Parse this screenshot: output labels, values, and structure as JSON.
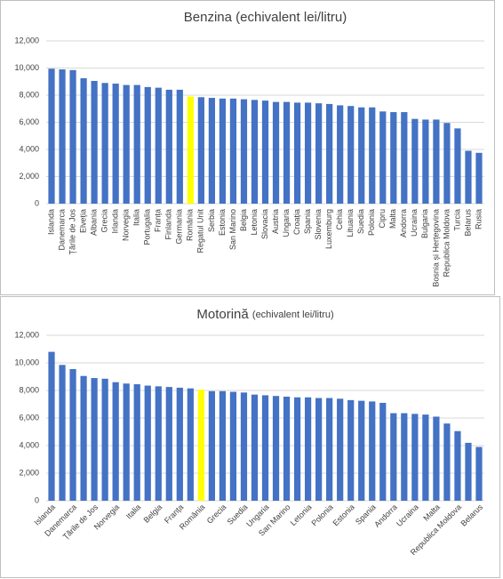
{
  "chart_data": [
    {
      "type": "bar",
      "title": "Benzina (echivalent lei/litru)",
      "categories": [
        "Islanda",
        "Danemarca",
        "Țările de Jos",
        "Elveția",
        "Albania",
        "Grecia",
        "Irlanda",
        "Norvegia",
        "Italia",
        "Portugalia",
        "Franța",
        "Finlanda",
        "Germania",
        "România",
        "Regatul Unit",
        "Serbia",
        "Estonia",
        "San Marino",
        "Belgia",
        "Letonia",
        "Slovacia",
        "Austria",
        "Ungaria",
        "Croația",
        "Spania",
        "Slovenia",
        "Luxemburg",
        "Cehia",
        "Lituania",
        "Suedia",
        "Polonia",
        "Cipru",
        "Malta",
        "Andorra",
        "Ucraina",
        "Bulgaria",
        "Bosnia și Herțegovina",
        "Republica Moldova",
        "Turcia",
        "Belarus",
        "Rusia"
      ],
      "values": [
        9950,
        9900,
        9850,
        9250,
        9050,
        8900,
        8850,
        8750,
        8750,
        8600,
        8550,
        8400,
        8400,
        7900,
        7850,
        7800,
        7750,
        7750,
        7700,
        7650,
        7600,
        7500,
        7500,
        7450,
        7450,
        7400,
        7350,
        7250,
        7200,
        7100,
        7100,
        6800,
        6750,
        6750,
        6250,
        6200,
        6200,
        5950,
        5550,
        3900,
        3750
      ],
      "colors": [
        "#4472c4",
        "#4472c4",
        "#4472c4",
        "#4472c4",
        "#4472c4",
        "#4472c4",
        "#4472c4",
        "#4472c4",
        "#4472c4",
        "#4472c4",
        "#4472c4",
        "#4472c4",
        "#4472c4",
        "#ffff00",
        "#4472c4",
        "#4472c4",
        "#4472c4",
        "#4472c4",
        "#4472c4",
        "#4472c4",
        "#4472c4",
        "#4472c4",
        "#4472c4",
        "#4472c4",
        "#4472c4",
        "#4472c4",
        "#4472c4",
        "#4472c4",
        "#4472c4",
        "#4472c4",
        "#4472c4",
        "#4472c4",
        "#4472c4",
        "#4472c4",
        "#4472c4",
        "#4472c4",
        "#4472c4",
        "#4472c4",
        "#4472c4",
        "#4472c4",
        "#4472c4"
      ],
      "ylim": [
        0,
        12000
      ],
      "yticks": [
        0,
        {
          "value": 2000,
          "label": "2,000"
        },
        {
          "value": 4000,
          "label": "4,000"
        },
        {
          "value": 6000,
          "label": "6,000"
        },
        {
          "value": 8000,
          "label": "8,000"
        },
        {
          "value": 10000,
          "label": "10,000"
        },
        {
          "value": 12000,
          "label": "12,000"
        }
      ],
      "grid": true,
      "label_rotation": -90
    },
    {
      "type": "bar",
      "title": "Motorină",
      "subtitle": "(echivalent lei/litru)",
      "categories": [
        "Islanda",
        null,
        "Danemarca",
        null,
        "Țările de Jos",
        null,
        "Norvegia",
        null,
        "Italia",
        null,
        "Belgia",
        null,
        "Franța",
        null,
        "România",
        null,
        "Grecia",
        null,
        "Suedia",
        null,
        "Ungaria",
        null,
        "San Marino",
        null,
        "Letonia",
        null,
        "Polonia",
        null,
        "Estonia",
        null,
        "Spania",
        null,
        "Andorra",
        null,
        "Ucraina",
        null,
        "Malta",
        null,
        "Republica Moldova",
        null,
        "Belarus"
      ],
      "values": [
        10800,
        9850,
        9550,
        9050,
        8900,
        8850,
        8600,
        8500,
        8450,
        8350,
        8300,
        8250,
        8200,
        8150,
        8050,
        7950,
        7950,
        7900,
        7850,
        7700,
        7650,
        7600,
        7550,
        7500,
        7500,
        7450,
        7450,
        7400,
        7300,
        7250,
        7200,
        7100,
        6350,
        6350,
        6300,
        6250,
        6100,
        5600,
        5050,
        4200,
        3900
      ],
      "colors": [
        "#4472c4",
        "#4472c4",
        "#4472c4",
        "#4472c4",
        "#4472c4",
        "#4472c4",
        "#4472c4",
        "#4472c4",
        "#4472c4",
        "#4472c4",
        "#4472c4",
        "#4472c4",
        "#4472c4",
        "#4472c4",
        "#ffff00",
        "#4472c4",
        "#4472c4",
        "#4472c4",
        "#4472c4",
        "#4472c4",
        "#4472c4",
        "#4472c4",
        "#4472c4",
        "#4472c4",
        "#4472c4",
        "#4472c4",
        "#4472c4",
        "#4472c4",
        "#4472c4",
        "#4472c4",
        "#4472c4",
        "#4472c4",
        "#4472c4",
        "#4472c4",
        "#4472c4",
        "#4472c4",
        "#4472c4",
        "#4472c4",
        "#4472c4",
        "#4472c4",
        "#4472c4"
      ],
      "ylim": [
        0,
        12000
      ],
      "yticks": [
        0,
        {
          "value": 2000,
          "label": "2,000"
        },
        {
          "value": 4000,
          "label": "4,000"
        },
        {
          "value": 6000,
          "label": "6,000"
        },
        {
          "value": 8000,
          "label": "8,000"
        },
        {
          "value": 10000,
          "label": "10,000"
        },
        {
          "value": 12000,
          "label": "12,000"
        }
      ],
      "grid": true,
      "label_rotation": -45
    }
  ]
}
